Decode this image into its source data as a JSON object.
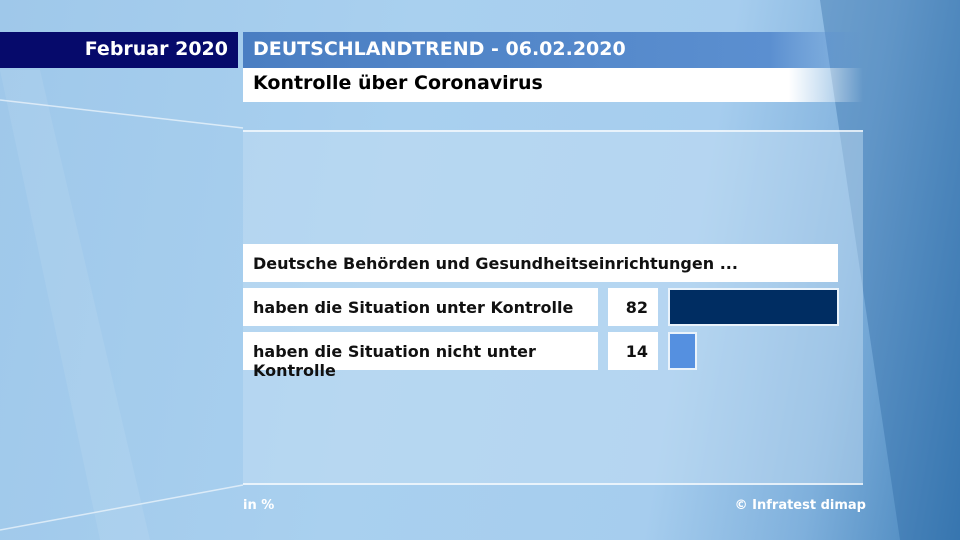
{
  "header": {
    "date": "Februar 2020",
    "title": "DEUTSCHLANDTREND - 06.02.2020",
    "subtitle": "Kontrolle über Coronavirus"
  },
  "chart_data": {
    "type": "bar",
    "title": "Kontrolle über Coronavirus",
    "question": "Deutsche Behörden und Gesundheitseinrichtungen ...",
    "categories": [
      "haben die Situation unter Kontrolle",
      "haben die Situation nicht unter Kontrolle"
    ],
    "values": [
      82,
      14
    ],
    "colors": [
      "#002d62",
      "#5590e0"
    ],
    "unit": "in %",
    "xlim": [
      0,
      82
    ]
  },
  "footer": {
    "unit": "in %",
    "source": "© Infratest dimap"
  }
}
